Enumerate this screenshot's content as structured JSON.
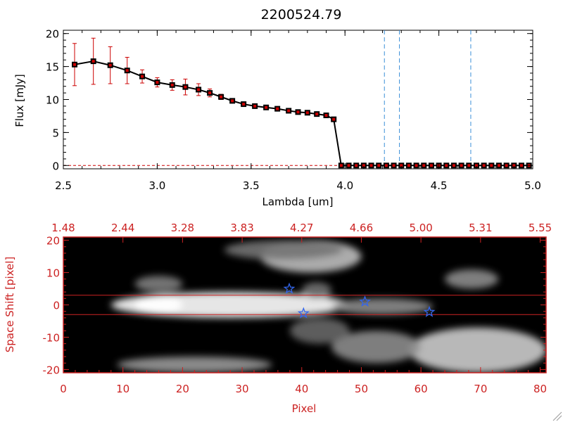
{
  "chart_data": [
    {
      "type": "line",
      "title": "2200524.79",
      "xlabel": "Lambda [um]",
      "ylabel": "Flux [mJy]",
      "xlim": [
        2.5,
        5.0
      ],
      "ylim": [
        -0.5,
        20.5
      ],
      "x_ticks": [
        "2.5",
        "3.0",
        "3.5",
        "4.0",
        "4.5",
        "5.0"
      ],
      "x_tick_values": [
        2.5,
        3.0,
        3.5,
        4.0,
        4.5,
        5.0
      ],
      "y_ticks": [
        "0",
        "5",
        "10",
        "15",
        "20"
      ],
      "y_tick_values": [
        0,
        5,
        10,
        15,
        20
      ],
      "series": [
        {
          "name": "flux",
          "color": "#000000",
          "marker_color": "#cc0000",
          "x": [
            2.56,
            2.66,
            2.75,
            2.84,
            2.92,
            3.0,
            3.08,
            3.15,
            3.22,
            3.28,
            3.34,
            3.4,
            3.46,
            3.52,
            3.58,
            3.64,
            3.7,
            3.75,
            3.8,
            3.85,
            3.9,
            3.94,
            3.98,
            4.02,
            4.06,
            4.1,
            4.14,
            4.18,
            4.22,
            4.26,
            4.3,
            4.34,
            4.38,
            4.42,
            4.46,
            4.5,
            4.54,
            4.58,
            4.62,
            4.66,
            4.7,
            4.74,
            4.78,
            4.82,
            4.86,
            4.9,
            4.94,
            4.98
          ],
          "y": [
            15.3,
            15.8,
            15.2,
            14.4,
            13.5,
            12.6,
            12.2,
            11.9,
            11.5,
            11.0,
            10.4,
            9.8,
            9.3,
            9.0,
            8.8,
            8.6,
            8.3,
            8.1,
            8.0,
            7.8,
            7.6,
            7.0,
            0,
            0,
            0,
            0,
            0,
            0,
            0,
            0,
            0,
            0,
            0,
            0,
            0,
            0,
            0,
            0,
            0,
            0,
            0,
            0,
            0,
            0,
            0,
            0,
            0,
            0
          ],
          "yerr": [
            3.2,
            3.5,
            2.8,
            2.0,
            1.0,
            0.7,
            0.8,
            1.2,
            0.9,
            0.6,
            0.4,
            0.3,
            0.3,
            0.2,
            0.2,
            0.2,
            0.2,
            0.2,
            0.2,
            0.2,
            0.2,
            0.2,
            0,
            0,
            0,
            0,
            0,
            0,
            0,
            0,
            0,
            0,
            0,
            0,
            0,
            0,
            0,
            0,
            0,
            0,
            0,
            0,
            0,
            0,
            0,
            0,
            0,
            0
          ]
        }
      ],
      "vlines": {
        "x": [
          4.21,
          4.29,
          4.67
        ],
        "color": "#3a8fd8",
        "style": "dashed"
      },
      "baseline": {
        "y": 0,
        "color": "#cc0000",
        "style": "dashed"
      }
    },
    {
      "type": "heatmap",
      "xlabel": "Pixel",
      "ylabel": "Space Shift [pixel]",
      "xlim": [
        0,
        81
      ],
      "ylim": [
        -21,
        21
      ],
      "x_ticks": [
        "0",
        "10",
        "20",
        "30",
        "40",
        "50",
        "60",
        "70",
        "80"
      ],
      "x_tick_values": [
        0,
        10,
        20,
        30,
        40,
        50,
        60,
        70,
        80
      ],
      "y_ticks": [
        "-20",
        "-10",
        "0",
        "10",
        "20"
      ],
      "y_tick_values": [
        -20,
        -10,
        0,
        10,
        20
      ],
      "top_axis_label_values": [
        0,
        10,
        20,
        30,
        40,
        50,
        60,
        70,
        80
      ],
      "top_axis_labels": [
        "1.48",
        "2.44",
        "3.28",
        "3.83",
        "4.27",
        "4.66",
        "5.00",
        "5.31",
        "5.55"
      ],
      "axis_color": "#cc2222",
      "colormap": "grayscale",
      "horizontal_lines": {
        "y": [
          3,
          -3
        ],
        "color": "#cc2222"
      },
      "star_markers": {
        "color": "#3366ee",
        "points": [
          {
            "x": 37.9,
            "y": 5
          },
          {
            "x": 40.3,
            "y": -2.6
          },
          {
            "x": 50.6,
            "y": 1
          },
          {
            "x": 61.4,
            "y": -2.2
          }
        ]
      },
      "emission_blobs": [
        {
          "x0": 8,
          "x1": 48,
          "y0": -4,
          "y1": 4,
          "peak": 1.0
        },
        {
          "x0": 12,
          "x1": 20,
          "y0": -3,
          "y1": 3,
          "peak": 1.0
        },
        {
          "x0": 45,
          "x1": 62,
          "y0": -3,
          "y1": 2,
          "peak": 0.55
        },
        {
          "x0": 33,
          "x1": 50,
          "y0": 10,
          "y1": 20,
          "peak": 0.75
        },
        {
          "x0": 12,
          "x1": 20,
          "y0": 4,
          "y1": 9,
          "peak": 0.5
        },
        {
          "x0": 40,
          "x1": 45,
          "y0": 2,
          "y1": 7,
          "peak": 0.45
        },
        {
          "x0": 64,
          "x1": 73,
          "y0": 5,
          "y1": 11,
          "peak": 0.55
        },
        {
          "x0": 58,
          "x1": 81,
          "y0": -21,
          "y1": -7,
          "peak": 0.8
        },
        {
          "x0": 45,
          "x1": 60,
          "y0": -18,
          "y1": -8,
          "peak": 0.55
        },
        {
          "x0": 9,
          "x1": 35,
          "y0": -21,
          "y1": -16,
          "peak": 0.6
        },
        {
          "x0": 38,
          "x1": 48,
          "y0": -12,
          "y1": -4,
          "peak": 0.4
        },
        {
          "x0": 27,
          "x1": 47,
          "y0": 14,
          "y1": 20,
          "peak": 0.45
        }
      ]
    }
  ]
}
